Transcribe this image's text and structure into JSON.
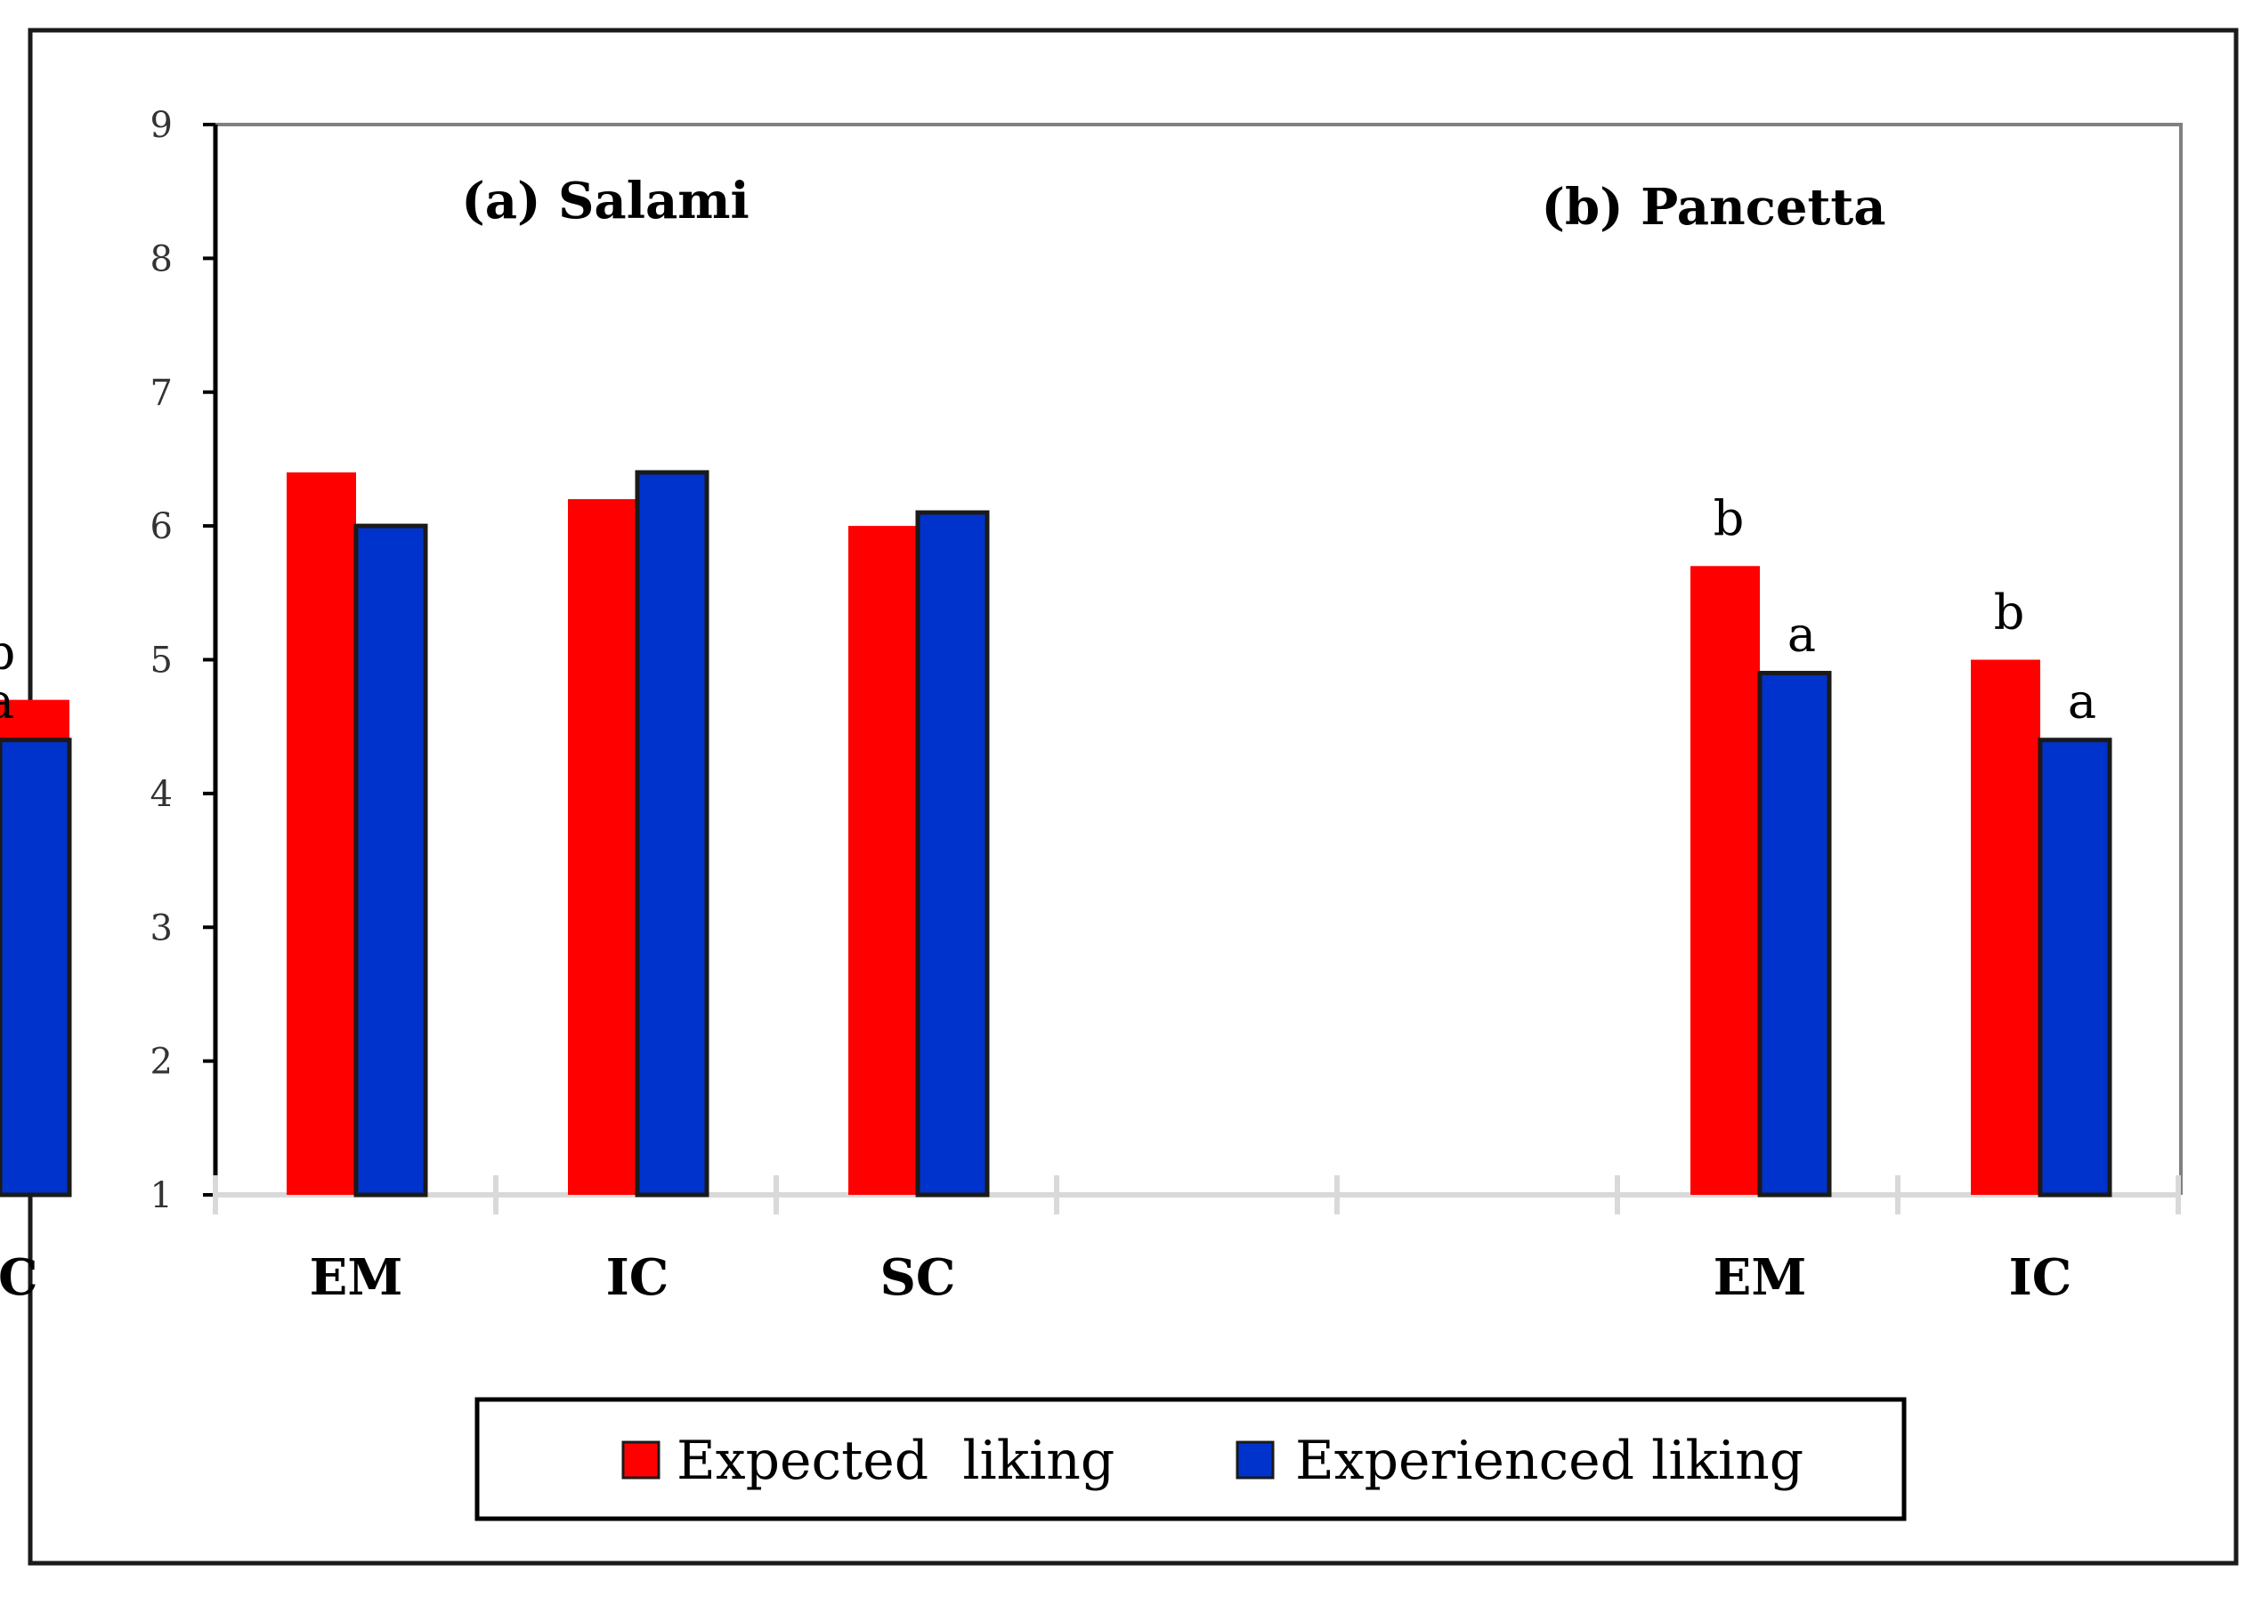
{
  "chart_data": {
    "type": "bar",
    "ylim": [
      1,
      9
    ],
    "yticks": [
      "1",
      "2",
      "3",
      "4",
      "5",
      "6",
      "7",
      "8",
      "9"
    ],
    "xlabel": "",
    "ylabel": "",
    "grid": false,
    "legend_position": "bottom",
    "panels": [
      {
        "title": "(a) Salami",
        "categories": [
          "EM",
          "IC",
          "SC"
        ],
        "series": [
          {
            "name": "Expected  liking",
            "values": [
              6.4,
              6.2,
              6.0
            ]
          },
          {
            "name": "Experienced liking",
            "values": [
              6.0,
              6.4,
              6.1
            ]
          }
        ],
        "annotations": [
          [
            "",
            ""
          ],
          [
            "",
            ""
          ],
          [
            "",
            ""
          ]
        ]
      },
      {
        "title": "(b) Pancetta",
        "categories": [
          "EM",
          "IC",
          "SC"
        ],
        "series": [
          {
            "name": "Expected  liking",
            "values": [
              5.7,
              5.0,
              4.7
            ]
          },
          {
            "name": "Experienced liking",
            "values": [
              4.9,
              4.4,
              4.4
            ]
          }
        ],
        "annotations": [
          [
            "b",
            "a"
          ],
          [
            "b",
            "a"
          ],
          [
            "b",
            "a"
          ]
        ]
      }
    ],
    "legend": [
      {
        "label": "Expected  liking",
        "color": "#ff0000"
      },
      {
        "label": "Experienced liking",
        "color": "#0033cc"
      }
    ]
  },
  "colors": {
    "expected": "#ff0000",
    "experienced": "#0033cc",
    "axis": "#d9d9d9",
    "frame": "#808080",
    "border": "#1a1a1a"
  }
}
